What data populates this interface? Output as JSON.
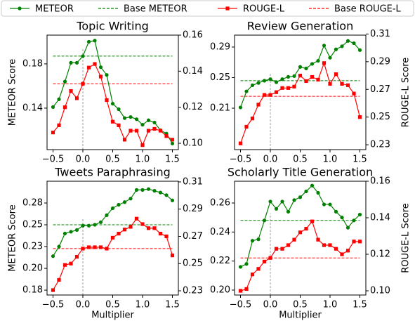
{
  "legend": {
    "entries": [
      "METEOR",
      "Base METEOR",
      "ROUGE-L",
      "Base ROUGE-L"
    ]
  },
  "chart_data": [
    {
      "type": "line",
      "title": "Topic Writing",
      "ylabel": "METEOR Score",
      "x": [
        -0.5,
        -0.4,
        -0.3,
        -0.2,
        -0.1,
        0,
        0.1,
        0.2,
        0.3,
        0.4,
        0.5,
        0.6,
        0.7,
        0.8,
        0.9,
        1.0,
        1.1,
        1.2,
        1.3,
        1.4,
        1.5
      ],
      "xlim": [
        -0.6,
        1.6
      ],
      "xticks": [
        {
          "value": -0.5,
          "label": "−0.5"
        },
        {
          "value": 0,
          "label": "0.0"
        },
        0.5,
        {
          "value": 1,
          "label": "1.0"
        },
        1.5
      ],
      "ylim": [
        0.1025,
        0.206
      ],
      "yticks": [
        0.14,
        0.18
      ],
      "y2lim": [
        0.0965,
        0.16
      ],
      "y2ticks": [
        {
          "value": 0.1,
          "label": "0.10"
        },
        0.12,
        0.14,
        0.16
      ],
      "series": [
        {
          "color": "#008000",
          "marker": "circle",
          "values": [
            0.141,
            0.148,
            0.164,
            0.181,
            0.181,
            0.187,
            0.2,
            0.201,
            0.177,
            0.17,
            0.144,
            0.139,
            0.131,
            0.132,
            0.13,
            0.125,
            0.129,
            0.127,
            0.12,
            0.117,
            0.108
          ]
        },
        {
          "color": "#ff0000",
          "marker": "square",
          "axis": "y2",
          "values": [
            0.106,
            0.11,
            0.12,
            0.129,
            0.125,
            0.133,
            0.142,
            0.144,
            0.137,
            0.124,
            0.112,
            0.11,
            0.102,
            0.107,
            0.107,
            0.099,
            0.107,
            0.108,
            0.107,
            0.104,
            0.102
          ]
        }
      ],
      "baselines": [
        {
          "color": "#008000",
          "value": 0.187
        },
        {
          "color": "#ff0000",
          "axis": "y2",
          "value": 0.133
        }
      ]
    },
    {
      "type": "line",
      "title": "Review Generation",
      "y2label": "ROUGE-L Score",
      "x": [
        -0.5,
        -0.4,
        -0.3,
        -0.2,
        -0.1,
        0,
        0.1,
        0.2,
        0.3,
        0.4,
        0.5,
        0.6,
        0.7,
        0.8,
        0.9,
        1.0,
        1.1,
        1.2,
        1.3,
        1.4,
        1.5
      ],
      "xlim": [
        -0.6,
        1.6
      ],
      "xticks": [
        {
          "value": -0.5,
          "label": "−0.5"
        },
        {
          "value": 0,
          "label": "0.0"
        },
        0.5,
        {
          "value": 1,
          "label": "1.0"
        },
        1.5
      ],
      "ylim": [
        0.1558,
        0.3056
      ],
      "yticks": [
        0.21,
        0.25,
        0.29
      ],
      "y2lim": [
        0.2265,
        0.3092
      ],
      "y2ticks": [
        0.23,
        0.25,
        0.27,
        0.29,
        0.31
      ],
      "series": [
        {
          "color": "#008000",
          "marker": "circle",
          "values": [
            0.211,
            0.232,
            0.24,
            0.243,
            0.246,
            0.248,
            0.244,
            0.248,
            0.251,
            0.252,
            0.264,
            0.262,
            0.268,
            0.272,
            0.292,
            0.276,
            0.287,
            0.291,
            0.298,
            0.295,
            0.286
          ]
        },
        {
          "color": "#ff0000",
          "marker": "square",
          "axis": "y2",
          "values": [
            0.231,
            0.243,
            0.249,
            0.259,
            0.266,
            0.266,
            0.268,
            0.271,
            0.271,
            0.272,
            0.28,
            0.276,
            0.279,
            0.277,
            0.289,
            0.274,
            0.281,
            0.274,
            0.273,
            0.267,
            0.25
          ]
        }
      ],
      "baselines": [
        {
          "color": "#008000",
          "value": 0.246
        },
        {
          "color": "#ff0000",
          "axis": "y2",
          "value": 0.265
        }
      ]
    },
    {
      "type": "line",
      "title": "Tweets Paraphrasing",
      "ylabel": "METEOR Score",
      "xlabel": "Multiplier",
      "x": [
        -0.5,
        -0.4,
        -0.3,
        -0.2,
        -0.1,
        0,
        0.1,
        0.2,
        0.3,
        0.4,
        0.5,
        0.6,
        0.7,
        0.8,
        0.9,
        1.0,
        1.1,
        1.2,
        1.3,
        1.4,
        1.5
      ],
      "xlim": [
        -0.6,
        1.6
      ],
      "xticks": [
        {
          "value": -0.5,
          "label": "−0.5"
        },
        {
          "value": 0,
          "label": "0.0"
        },
        0.5,
        {
          "value": 1,
          "label": "1.0"
        },
        1.5
      ],
      "ylim": [
        0.1694,
        0.3
      ],
      "yticks": [
        {
          "value": 0.175,
          "label": "0.18"
        },
        {
          "value": 0.2,
          "label": "0.20"
        },
        {
          "value": 0.225,
          "label": "0.23"
        },
        0.25,
        {
          "value": 0.275,
          "label": "0.28"
        }
      ],
      "y2lim": [
        0.2269,
        0.3105
      ],
      "y2ticks": [
        0.23,
        0.25,
        0.27,
        0.29,
        0.31
      ],
      "series": [
        {
          "color": "#008000",
          "marker": "circle",
          "values": [
            0.214,
            0.225,
            0.24,
            0.242,
            0.244,
            0.249,
            0.249,
            0.25,
            0.253,
            0.261,
            0.269,
            0.273,
            0.276,
            0.28,
            0.29,
            0.29,
            0.291,
            0.289,
            0.287,
            0.284,
            0.278
          ]
        },
        {
          "color": "#ff0000",
          "marker": "square",
          "axis": "y2",
          "values": [
            0.2305,
            0.238,
            0.249,
            0.25,
            0.255,
            0.261,
            0.262,
            0.262,
            0.262,
            0.261,
            0.269,
            0.272,
            0.275,
            0.277,
            0.283,
            0.279,
            0.276,
            0.276,
            0.272,
            0.27,
            0.256
          ]
        }
      ],
      "baselines": [
        {
          "color": "#008000",
          "value": 0.25
        },
        {
          "color": "#ff0000",
          "axis": "y2",
          "value": 0.261
        }
      ]
    },
    {
      "type": "line",
      "title": "Scholarly Title Generation",
      "y2label": "ROUGE-L Score",
      "xlabel": "Multiplier",
      "x": [
        -0.5,
        -0.4,
        -0.3,
        -0.2,
        -0.1,
        0,
        0.1,
        0.2,
        0.3,
        0.4,
        0.5,
        0.6,
        0.7,
        0.8,
        0.9,
        1.0,
        1.1,
        1.2,
        1.3,
        1.4,
        1.5
      ],
      "xlim": [
        -0.6,
        1.6
      ],
      "xticks": [
        {
          "value": -0.5,
          "label": "−0.5"
        },
        {
          "value": 0,
          "label": "0.0"
        },
        0.5,
        {
          "value": 1,
          "label": "1.0"
        },
        1.5
      ],
      "ylim": [
        0.1966,
        0.275
      ],
      "yticks": [
        {
          "value": 0.2,
          "label": "0.20"
        },
        0.22,
        0.24,
        0.26
      ],
      "y2lim": [
        0.0977,
        0.16
      ],
      "y2ticks": [
        {
          "value": 0.1,
          "label": "0.10"
        },
        0.12,
        0.14,
        0.16
      ],
      "series": [
        {
          "color": "#008000",
          "marker": "circle",
          "values": [
            0.216,
            0.218,
            0.234,
            0.235,
            0.248,
            0.261,
            0.256,
            0.261,
            0.254,
            0.262,
            0.264,
            0.268,
            0.272,
            0.267,
            0.259,
            0.259,
            0.254,
            0.25,
            0.243,
            0.248,
            0.252
          ]
        },
        {
          "color": "#ff0000",
          "marker": "square",
          "axis": "y2",
          "values": [
            0.1,
            0.101,
            0.109,
            0.112,
            0.116,
            0.118,
            0.123,
            0.123,
            0.125,
            0.128,
            0.132,
            0.134,
            0.138,
            0.128,
            0.125,
            0.125,
            0.123,
            0.12,
            0.122,
            0.127,
            0.127
          ]
        }
      ],
      "baselines": [
        {
          "color": "#008000",
          "value": 0.248
        },
        {
          "color": "#ff0000",
          "axis": "y2",
          "value": 0.118
        }
      ]
    }
  ]
}
